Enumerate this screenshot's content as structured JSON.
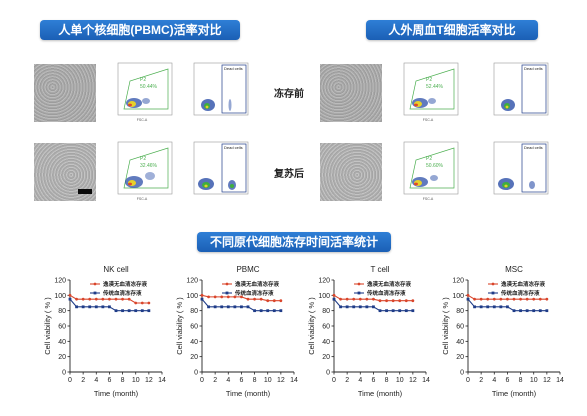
{
  "banners": {
    "pbmc_title": "人单个核细胞(PBMC)活率对比",
    "tcell_title": "人外周血T细胞活率对比",
    "stats_title": "不同原代细胞冻存时间活率统计"
  },
  "row_labels": {
    "before": "冻存前",
    "after": "复苏后"
  },
  "flow": {
    "gate_label": "P2",
    "dead_label": "Dead cells",
    "pbmc_before_pct": "50.44%",
    "pbmc_after_pct": "32.46%",
    "tcell_before_pct": "52.44%",
    "tcell_after_pct": "50.60%"
  },
  "chart_data": [
    {
      "type": "line",
      "title": "NK cell",
      "xlabel": "Time (month)",
      "ylabel": "Cell viability ( % )",
      "xlim": [
        0,
        14
      ],
      "ylim": [
        0,
        120
      ],
      "xticks": [
        0,
        2,
        4,
        6,
        8,
        10,
        12,
        14
      ],
      "yticks": [
        0,
        20,
        40,
        60,
        80,
        100,
        120
      ],
      "legend_position": "top-right",
      "series": [
        {
          "name": "逸漠无血清冻存液",
          "color": "#d9452b",
          "x": [
            0,
            1,
            2,
            3,
            4,
            5,
            6,
            7,
            8,
            9,
            10,
            11,
            12
          ],
          "y": [
            100,
            95,
            95,
            95,
            95,
            95,
            95,
            95,
            95,
            95,
            90,
            90,
            90
          ]
        },
        {
          "name": "传统血清冻存液",
          "color": "#1f3c88",
          "x": [
            0,
            1,
            2,
            3,
            4,
            5,
            6,
            7,
            8,
            9,
            10,
            11,
            12
          ],
          "y": [
            95,
            85,
            85,
            85,
            85,
            85,
            85,
            80,
            80,
            80,
            80,
            80,
            80
          ]
        }
      ]
    },
    {
      "type": "line",
      "title": "PBMC",
      "xlabel": "Time (month)",
      "ylabel": "Cell viability ( % )",
      "xlim": [
        0,
        14
      ],
      "ylim": [
        0,
        120
      ],
      "xticks": [
        0,
        2,
        4,
        6,
        8,
        10,
        12,
        14
      ],
      "yticks": [
        0,
        20,
        40,
        60,
        80,
        100,
        120
      ],
      "legend_position": "top-right",
      "series": [
        {
          "name": "逸漠无血清冻存液",
          "color": "#d9452b",
          "x": [
            0,
            1,
            2,
            3,
            4,
            5,
            6,
            7,
            8,
            9,
            10,
            11,
            12
          ],
          "y": [
            100,
            98,
            98,
            98,
            98,
            98,
            98,
            95,
            95,
            95,
            93,
            93,
            93
          ]
        },
        {
          "name": "传统血清冻存液",
          "color": "#1f3c88",
          "x": [
            0,
            1,
            2,
            3,
            4,
            5,
            6,
            7,
            8,
            9,
            10,
            11,
            12
          ],
          "y": [
            95,
            85,
            85,
            85,
            85,
            85,
            85,
            85,
            80,
            80,
            80,
            80,
            80
          ]
        }
      ]
    },
    {
      "type": "line",
      "title": "T cell",
      "xlabel": "Time (month)",
      "ylabel": "Cell viability ( % )",
      "xlim": [
        0,
        14
      ],
      "ylim": [
        0,
        120
      ],
      "xticks": [
        0,
        2,
        4,
        6,
        8,
        10,
        12,
        14
      ],
      "yticks": [
        0,
        20,
        40,
        60,
        80,
        100,
        120
      ],
      "legend_position": "top-right",
      "series": [
        {
          "name": "逸漠无血清冻存液",
          "color": "#d9452b",
          "x": [
            0,
            1,
            2,
            3,
            4,
            5,
            6,
            7,
            8,
            9,
            10,
            11,
            12
          ],
          "y": [
            100,
            95,
            95,
            95,
            95,
            95,
            95,
            93,
            93,
            93,
            93,
            93,
            93
          ]
        },
        {
          "name": "传统血清冻存液",
          "color": "#1f3c88",
          "x": [
            0,
            1,
            2,
            3,
            4,
            5,
            6,
            7,
            8,
            9,
            10,
            11,
            12
          ],
          "y": [
            95,
            85,
            85,
            85,
            85,
            85,
            85,
            80,
            80,
            80,
            80,
            80,
            80
          ]
        }
      ]
    },
    {
      "type": "line",
      "title": "MSC",
      "xlabel": "Time (month)",
      "ylabel": "Cell viability ( % )",
      "xlim": [
        0,
        14
      ],
      "ylim": [
        0,
        120
      ],
      "xticks": [
        0,
        2,
        4,
        6,
        8,
        10,
        12,
        14
      ],
      "yticks": [
        0,
        20,
        40,
        60,
        80,
        100,
        120
      ],
      "legend_position": "top-right",
      "series": [
        {
          "name": "逸漠无血清冻存液",
          "color": "#d9452b",
          "x": [
            0,
            1,
            2,
            3,
            4,
            5,
            6,
            7,
            8,
            9,
            10,
            11,
            12
          ],
          "y": [
            100,
            95,
            95,
            95,
            95,
            95,
            95,
            95,
            95,
            95,
            95,
            95,
            95
          ]
        },
        {
          "name": "传统血清冻存液",
          "color": "#1f3c88",
          "x": [
            0,
            1,
            2,
            3,
            4,
            5,
            6,
            7,
            8,
            9,
            10,
            11,
            12
          ],
          "y": [
            95,
            85,
            85,
            85,
            85,
            85,
            85,
            80,
            80,
            80,
            80,
            80,
            80
          ]
        }
      ]
    }
  ]
}
